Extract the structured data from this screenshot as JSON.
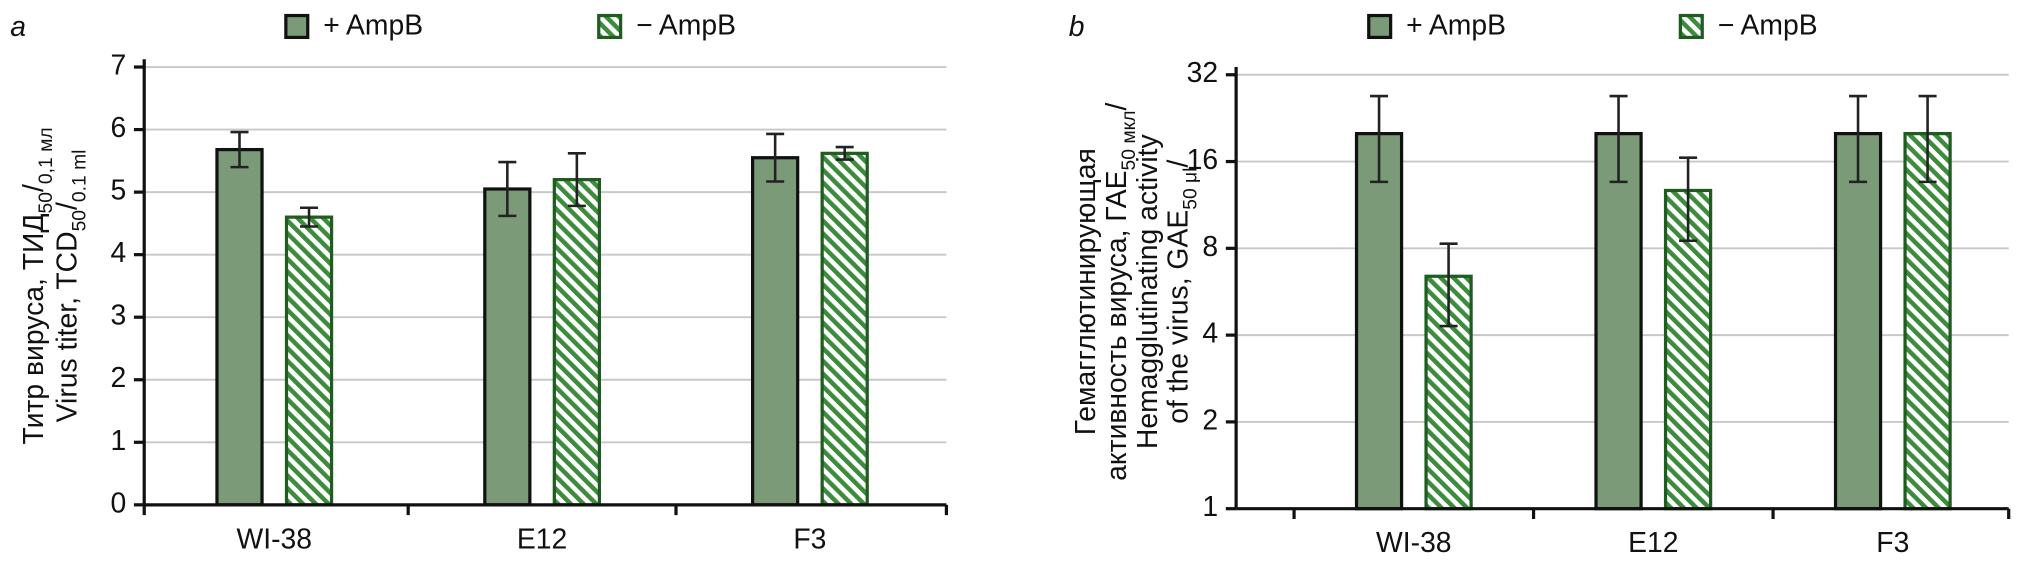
{
  "chart_data": [
    {
      "type": "bar",
      "panel_label": "a",
      "ylabel": [
        [
          "Титр вируса, ТИД",
          "50",
          "/",
          "0,1 мл"
        ],
        [
          "Virus titer, TCD",
          "50",
          "/",
          "0.1 ml"
        ]
      ],
      "categories": [
        "WI-38",
        "E12",
        "F3"
      ],
      "series": [
        {
          "name": "+ AmpB",
          "color": "#7a9a78",
          "hatch": false,
          "values": [
            5.68,
            5.05,
            5.55
          ],
          "error_minus": [
            0.28,
            0.43,
            0.38
          ],
          "error_plus": [
            0.28,
            0.43,
            0.38
          ]
        },
        {
          "name": "− AmpB",
          "color": "#3d8b3d",
          "hatch": true,
          "values": [
            4.6,
            5.2,
            5.62
          ],
          "error_minus": [
            0.15,
            0.42,
            0.1
          ],
          "error_plus": [
            0.15,
            0.42,
            0.1
          ]
        }
      ],
      "ylim": [
        0,
        7
      ],
      "yticks": [
        0,
        1,
        2,
        3,
        4,
        5,
        6,
        7
      ],
      "log_scale": false,
      "grid": true
    },
    {
      "type": "bar",
      "panel_label": "b",
      "ylabel": [
        [
          "Гемагглютинирующая"
        ],
        [
          "активность вируса, ГАЕ",
          "50 мкл",
          "/"
        ],
        [
          "Hemagglutinating activity"
        ],
        [
          "of the virus, GAE",
          "50 μl",
          "/"
        ]
      ],
      "categories": [
        "WI-38",
        "E12",
        "F3"
      ],
      "series": [
        {
          "name": "+ AmpB",
          "color": "#7a9a78",
          "hatch": false,
          "values": [
            20,
            20,
            20
          ],
          "error_minus": [
            6.4,
            6.4,
            6.4
          ],
          "error_plus": [
            7,
            7,
            7
          ]
        },
        {
          "name": "− AmpB",
          "color": "#3d8b3d",
          "hatch": true,
          "values": [
            6.4,
            12.7,
            20
          ],
          "error_minus": [
            2.1,
            4.2,
            6.4
          ],
          "error_plus": [
            1.9,
            3.8,
            7
          ]
        }
      ],
      "ylim": [
        1,
        32
      ],
      "yticks": [
        1,
        2,
        4,
        8,
        16,
        32
      ],
      "log_scale": true,
      "grid": true
    }
  ]
}
